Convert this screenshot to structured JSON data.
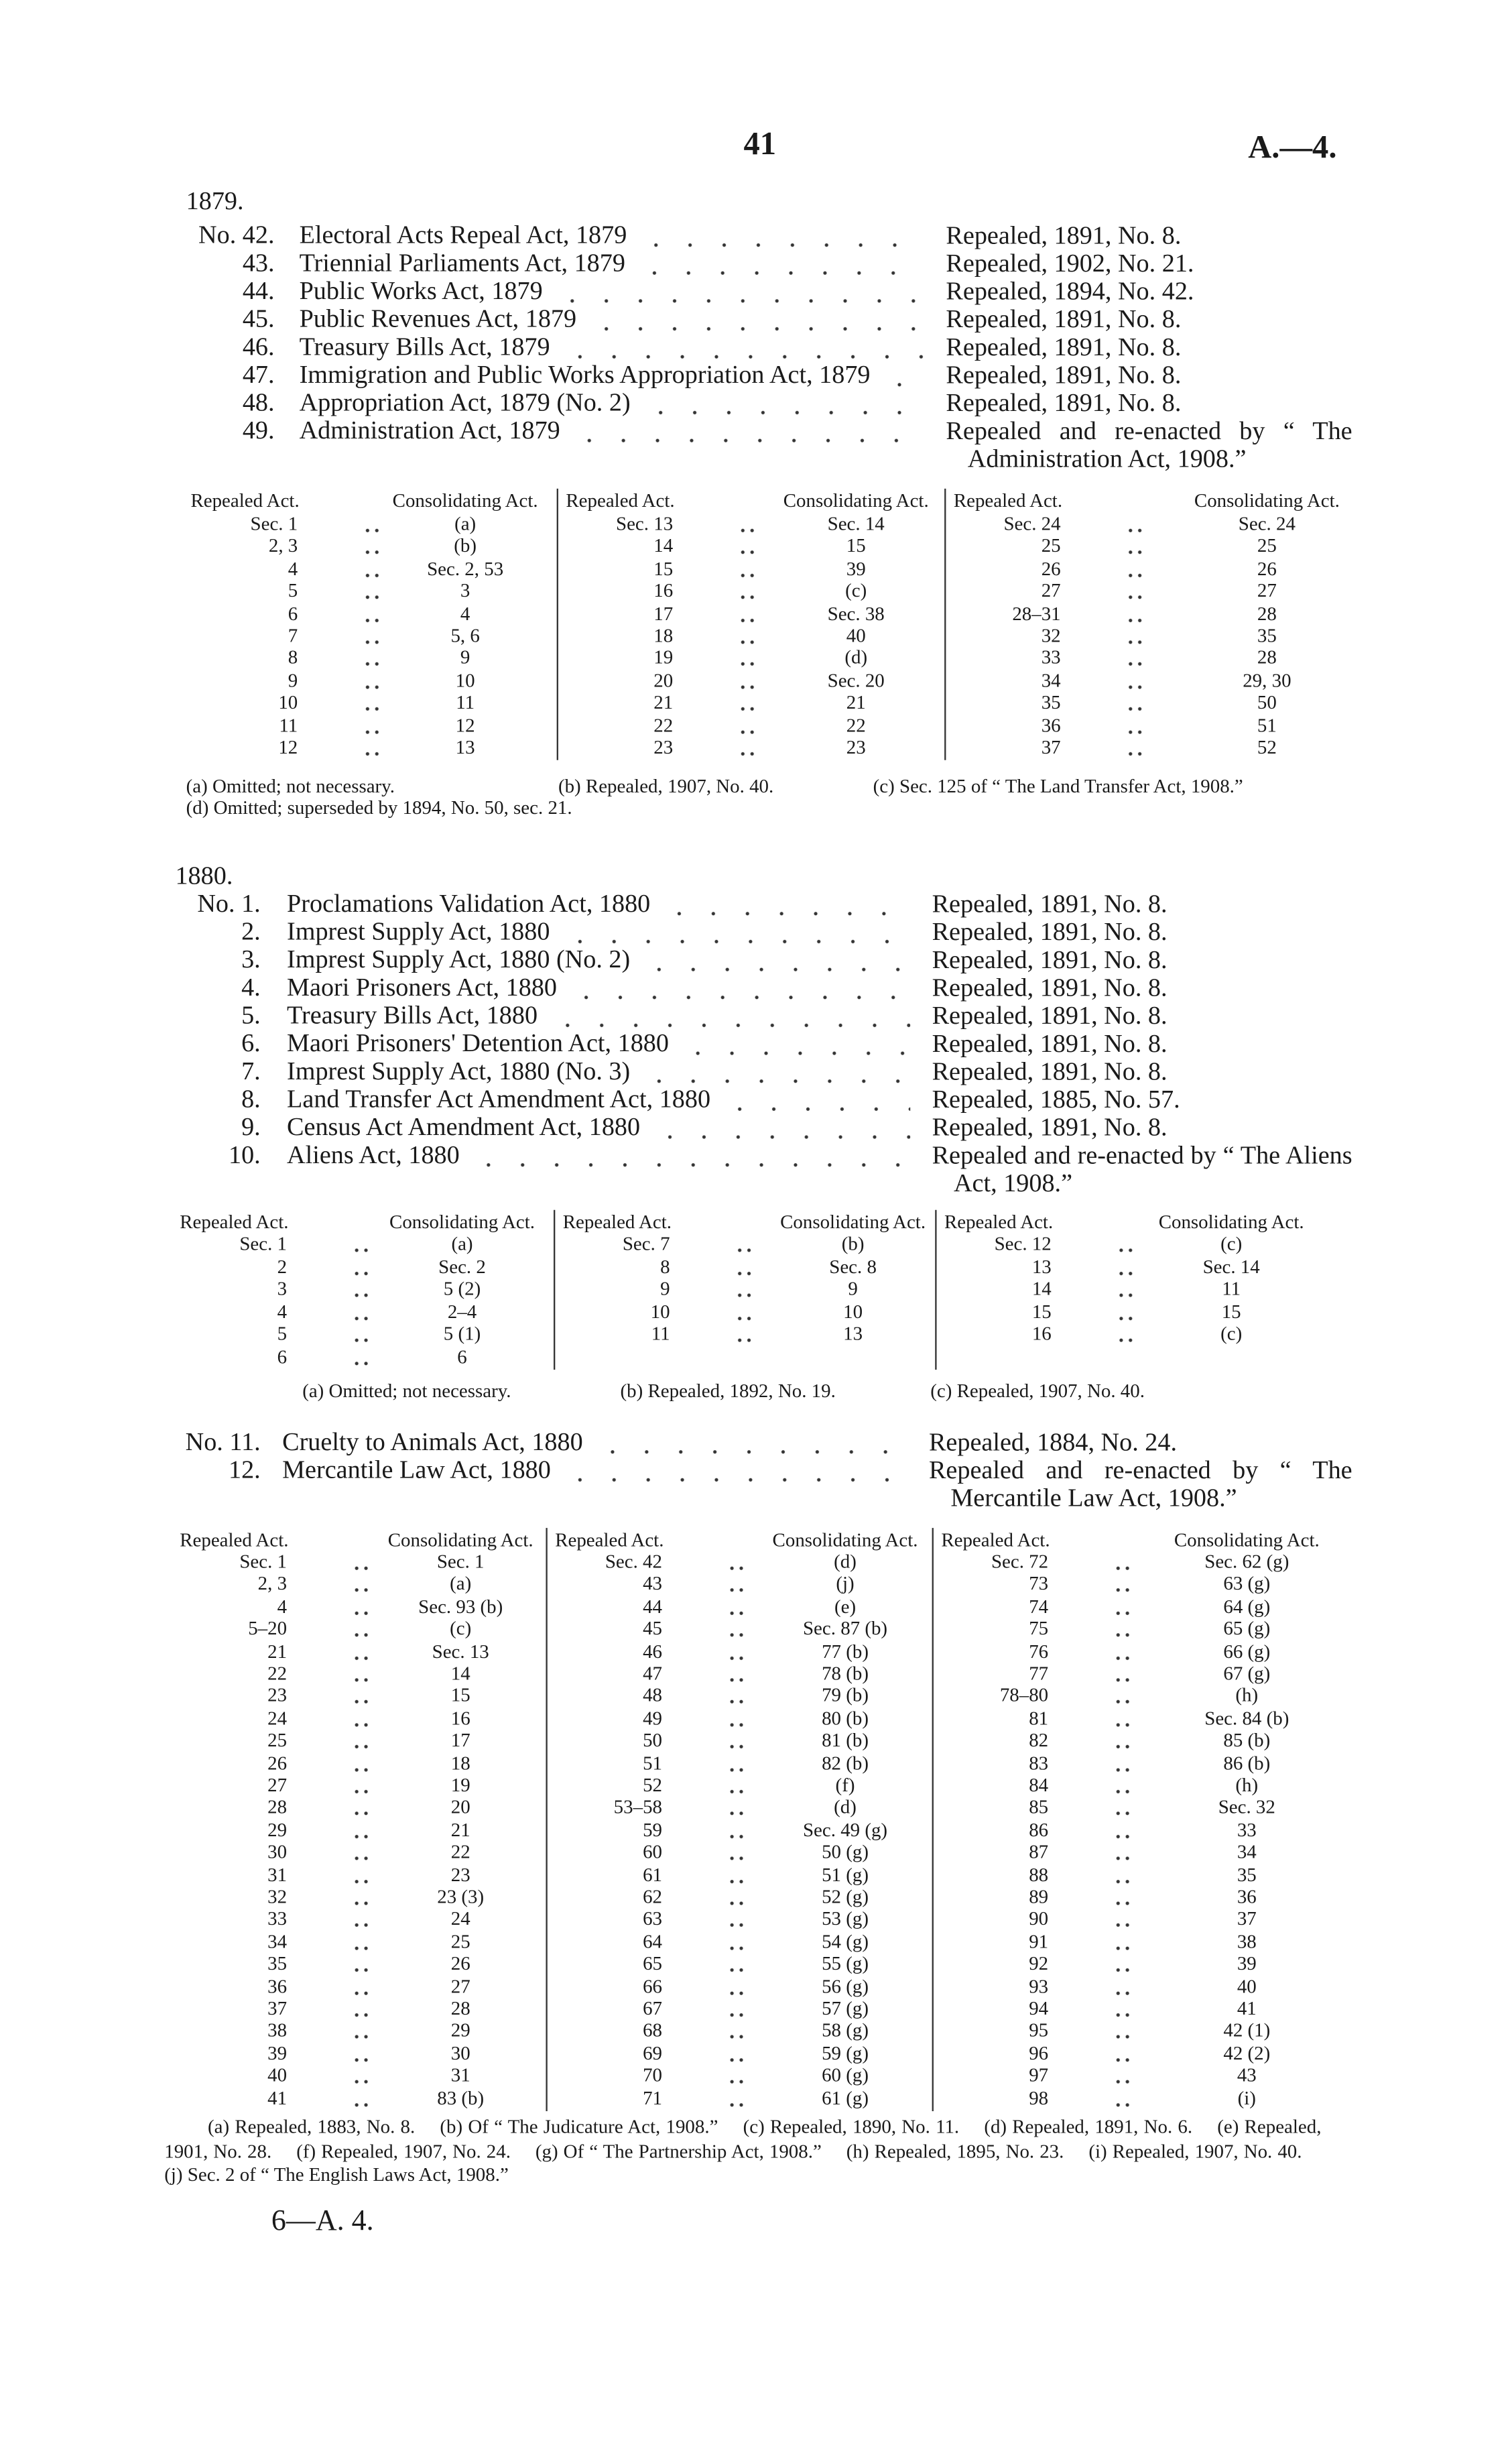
{
  "header": {
    "page_number": "41",
    "reference": "A.—4."
  },
  "sections": [
    {
      "year": "1879.",
      "acts": [
        {
          "no": "No. 42.",
          "title": "Electoral Acts Repeal Act, 1879",
          "status": "Repealed, 1891, No. 8."
        },
        {
          "no": "43.",
          "title": "Triennial Parliaments Act, 1879",
          "status": "Repealed, 1902, No. 21."
        },
        {
          "no": "44.",
          "title": "Public Works Act, 1879",
          "status": "Repealed, 1894, No. 42."
        },
        {
          "no": "45.",
          "title": "Public Revenues Act, 1879",
          "status": "Repealed, 1891, No. 8."
        },
        {
          "no": "46.",
          "title": "Treasury Bills Act, 1879",
          "status": "Repealed, 1891, No. 8."
        },
        {
          "no": "47.",
          "title": "Immigration and Public Works Appropriation Act, 1879",
          "status": "Repealed, 1891, No. 8."
        },
        {
          "no": "48.",
          "title": "Appropriation Act, 1879 (No. 2)",
          "status": "Repealed, 1891, No. 8."
        },
        {
          "no": "49.",
          "title": "Administration Act, 1879",
          "status": "Repealed and re-enacted by “ The Administration Act, 1908.”"
        }
      ],
      "table": {
        "headers": [
          "Repealed Act.",
          "Consolidating Act."
        ],
        "groups": [
          [
            [
              "Sec. 1",
              "(a)"
            ],
            [
              "2, 3",
              "(b)"
            ],
            [
              "4",
              "Sec. 2, 53"
            ],
            [
              "5",
              "3"
            ],
            [
              "6",
              "4"
            ],
            [
              "7",
              "5, 6"
            ],
            [
              "8",
              "9"
            ],
            [
              "9",
              "10"
            ],
            [
              "10",
              "11"
            ],
            [
              "11",
              "12"
            ],
            [
              "12",
              "13"
            ]
          ],
          [
            [
              "Sec. 13",
              "Sec. 14"
            ],
            [
              "14",
              "15"
            ],
            [
              "15",
              "39"
            ],
            [
              "16",
              "(c)"
            ],
            [
              "17",
              "Sec. 38"
            ],
            [
              "18",
              "40"
            ],
            [
              "19",
              "(d)"
            ],
            [
              "20",
              "Sec. 20"
            ],
            [
              "21",
              "21"
            ],
            [
              "22",
              "22"
            ],
            [
              "23",
              "23"
            ]
          ],
          [
            [
              "Sec. 24",
              "Sec. 24"
            ],
            [
              "25",
              "25"
            ],
            [
              "26",
              "26"
            ],
            [
              "27",
              "27"
            ],
            [
              "28–31",
              "28"
            ],
            [
              "32",
              "35"
            ],
            [
              "33",
              "28"
            ],
            [
              "34",
              "29, 30"
            ],
            [
              "35",
              "50"
            ],
            [
              "36",
              "51"
            ],
            [
              "37",
              "52"
            ]
          ]
        ]
      },
      "notes": [
        "(a) Omitted; not necessary.",
        "(b) Repealed, 1907, No. 40.",
        "(c) Sec. 125 of “ The Land Transfer Act, 1908.”",
        "(d) Omitted; superseded by 1894, No. 50, sec. 21."
      ]
    },
    {
      "year": "1880.",
      "acts": [
        {
          "no": "No. 1.",
          "title": "Proclamations Validation Act, 1880",
          "status": "Repealed, 1891, No. 8."
        },
        {
          "no": "2.",
          "title": "Imprest Supply Act, 1880",
          "status": "Repealed, 1891, No. 8."
        },
        {
          "no": "3.",
          "title": "Imprest Supply Act, 1880 (No. 2)",
          "status": "Repealed, 1891, No. 8."
        },
        {
          "no": "4.",
          "title": "Maori Prisoners Act, 1880",
          "status": "Repealed, 1891, No. 8."
        },
        {
          "no": "5.",
          "title": "Treasury Bills Act, 1880",
          "status": "Repealed, 1891, No. 8."
        },
        {
          "no": "6.",
          "title": "Maori Prisoners' Detention Act, 1880",
          "status": "Repealed, 1891, No. 8."
        },
        {
          "no": "7.",
          "title": "Imprest Supply Act, 1880 (No. 3)",
          "status": "Repealed, 1891, No. 8."
        },
        {
          "no": "8.",
          "title": "Land Transfer Act Amendment Act, 1880",
          "status": "Repealed, 1885, No. 57."
        },
        {
          "no": "9.",
          "title": "Census Act Amendment Act, 1880",
          "status": "Repealed, 1891, No. 8."
        },
        {
          "no": "10.",
          "title": "Aliens Act, 1880",
          "status": "Repealed and re-enacted by “ The Aliens Act, 1908.”"
        }
      ],
      "table": {
        "headers": [
          "Repealed Act.",
          "Consolidating Act."
        ],
        "groups": [
          [
            [
              "Sec. 1",
              "(a)"
            ],
            [
              "2",
              "Sec. 2"
            ],
            [
              "3",
              "5 (2)"
            ],
            [
              "4",
              "2–4"
            ],
            [
              "5",
              "5 (1)"
            ],
            [
              "6",
              "6"
            ]
          ],
          [
            [
              "Sec. 7",
              "(b)"
            ],
            [
              "8",
              "Sec. 8"
            ],
            [
              "9",
              "9"
            ],
            [
              "10",
              "10"
            ],
            [
              "11",
              "13"
            ]
          ],
          [
            [
              "Sec. 12",
              "(c)"
            ],
            [
              "13",
              "Sec. 14"
            ],
            [
              "14",
              "11"
            ],
            [
              "15",
              "15"
            ],
            [
              "16",
              "(c)"
            ]
          ]
        ]
      },
      "notes": [
        "(a) Omitted; not necessary.",
        "(b) Repealed, 1892, No. 19.",
        "(c) Repealed, 1907, No. 40."
      ]
    },
    {
      "acts": [
        {
          "no": "No. 11.",
          "title": "Cruelty to Animals Act, 1880",
          "status": "Repealed, 1884, No. 24."
        },
        {
          "no": "12.",
          "title": "Mercantile Law Act, 1880",
          "status": "Repealed and re-enacted by “ The Mercantile Law Act, 1908.”"
        }
      ],
      "table": {
        "headers": [
          "Repealed Act.",
          "Consolidating Act."
        ],
        "groups": [
          [
            [
              "Sec. 1",
              "Sec. 1"
            ],
            [
              "2, 3",
              "(a)"
            ],
            [
              "4",
              "Sec. 93 (b)"
            ],
            [
              "5–20",
              "(c)"
            ],
            [
              "21",
              "Sec. 13"
            ],
            [
              "22",
              "14"
            ],
            [
              "23",
              "15"
            ],
            [
              "24",
              "16"
            ],
            [
              "25",
              "17"
            ],
            [
              "26",
              "18"
            ],
            [
              "27",
              "19"
            ],
            [
              "28",
              "20"
            ],
            [
              "29",
              "21"
            ],
            [
              "30",
              "22"
            ],
            [
              "31",
              "23"
            ],
            [
              "32",
              "23 (3)"
            ],
            [
              "33",
              "24"
            ],
            [
              "34",
              "25"
            ],
            [
              "35",
              "26"
            ],
            [
              "36",
              "27"
            ],
            [
              "37",
              "28"
            ],
            [
              "38",
              "29"
            ],
            [
              "39",
              "30"
            ],
            [
              "40",
              "31"
            ],
            [
              "41",
              "83 (b)"
            ]
          ],
          [
            [
              "Sec. 42",
              "(d)"
            ],
            [
              "43",
              "(j)"
            ],
            [
              "44",
              "(e)"
            ],
            [
              "45",
              "Sec. 87 (b)"
            ],
            [
              "46",
              "77 (b)"
            ],
            [
              "47",
              "78 (b)"
            ],
            [
              "48",
              "79 (b)"
            ],
            [
              "49",
              "80 (b)"
            ],
            [
              "50",
              "81 (b)"
            ],
            [
              "51",
              "82 (b)"
            ],
            [
              "52",
              "(f)"
            ],
            [
              "53–58",
              "(d)"
            ],
            [
              "59",
              "Sec. 49 (g)"
            ],
            [
              "60",
              "50 (g)"
            ],
            [
              "61",
              "51 (g)"
            ],
            [
              "62",
              "52 (g)"
            ],
            [
              "63",
              "53 (g)"
            ],
            [
              "64",
              "54 (g)"
            ],
            [
              "65",
              "55 (g)"
            ],
            [
              "66",
              "56 (g)"
            ],
            [
              "67",
              "57 (g)"
            ],
            [
              "68",
              "58 (g)"
            ],
            [
              "69",
              "59 (g)"
            ],
            [
              "70",
              "60 (g)"
            ],
            [
              "71",
              "61 (g)"
            ]
          ],
          [
            [
              "Sec. 72",
              "Sec. 62 (g)"
            ],
            [
              "73",
              "63 (g)"
            ],
            [
              "74",
              "64 (g)"
            ],
            [
              "75",
              "65 (g)"
            ],
            [
              "76",
              "66 (g)"
            ],
            [
              "77",
              "67 (g)"
            ],
            [
              "78–80",
              "(h)"
            ],
            [
              "81",
              "Sec. 84 (b)"
            ],
            [
              "82",
              "85 (b)"
            ],
            [
              "83",
              "86 (b)"
            ],
            [
              "84",
              "(h)"
            ],
            [
              "85",
              "Sec. 32"
            ],
            [
              "86",
              "33"
            ],
            [
              "87",
              "34"
            ],
            [
              "88",
              "35"
            ],
            [
              "89",
              "36"
            ],
            [
              "90",
              "37"
            ],
            [
              "91",
              "38"
            ],
            [
              "92",
              "39"
            ],
            [
              "93",
              "40"
            ],
            [
              "94",
              "41"
            ],
            [
              "95",
              "42 (1)"
            ],
            [
              "96",
              "42 (2)"
            ],
            [
              "97",
              "43"
            ],
            [
              "98",
              "(i)"
            ]
          ]
        ]
      },
      "notes": [
        "(a) Repealed, 1883, No. 8.",
        "(b) Of “ The Judicature Act, 1908.”",
        "(c) Repealed, 1890, No. 11.",
        "(d) Repealed, 1891, No. 6.",
        "(e) Repealed, 1901, No. 28.",
        "(f) Repealed, 1907, No. 24.",
        "(g) Of “ The Partnership Act, 1908.”",
        "(h) Repealed, 1895, No. 23.",
        "(i) Repealed, 1907, No. 40.",
        "(j) Sec. 2 of “ The English Laws Act, 1908.”"
      ]
    }
  ],
  "footer": "6—A. 4."
}
